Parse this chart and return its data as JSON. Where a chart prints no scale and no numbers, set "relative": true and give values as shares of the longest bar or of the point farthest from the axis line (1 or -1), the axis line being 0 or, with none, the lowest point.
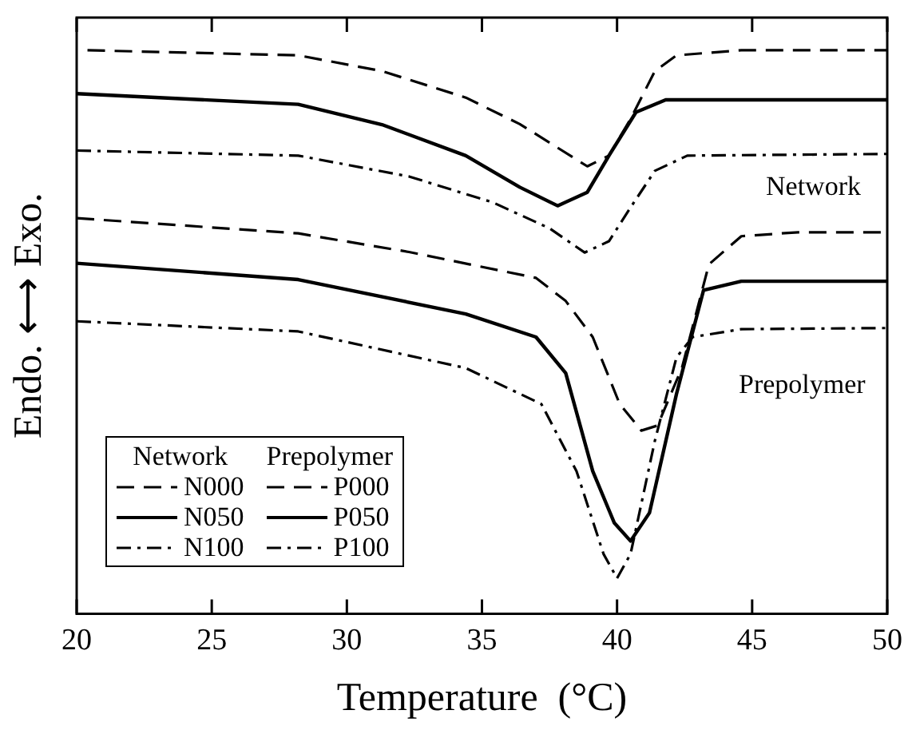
{
  "chart_data": {
    "type": "line",
    "relative": true,
    "xlabel": "Temperature  (°C)",
    "ylabel": "Endo. ⟷ Exo.",
    "xlim": [
      20,
      50
    ],
    "xticks": [
      20,
      25,
      30,
      35,
      40,
      45,
      50
    ],
    "legend": "bottom left",
    "marker": "none",
    "grid": false,
    "annotations": [
      "Network",
      "Prepolymer",
      "Network",
      "Prepolymer"
    ],
    "series": [
      {
        "name": "N000",
        "color": "#000000",
        "line_style": "dashed",
        "x": [
          20.4,
          28.2,
          31.3,
          34.4,
          36.4,
          38.9,
          39.7,
          40.5,
          41.4,
          42.2,
          44.6,
          50
        ],
        "values": [
          1.0,
          0.991,
          0.963,
          0.916,
          0.869,
          0.794,
          0.813,
          0.878,
          0.963,
          0.991,
          1.0,
          1.0
        ]
      },
      {
        "name": "N050",
        "color": "#000000",
        "line_style": "solid",
        "x": [
          20,
          28.2,
          31.3,
          34.4,
          36.4,
          37.8,
          38.9,
          39.7,
          40.7,
          41.8,
          50
        ],
        "values": [
          0.923,
          0.904,
          0.868,
          0.813,
          0.757,
          0.724,
          0.748,
          0.813,
          0.89,
          0.912,
          0.912
        ]
      },
      {
        "name": "N100",
        "color": "#000000",
        "line_style": "dashdot",
        "x": [
          20,
          28.2,
          32.3,
          35.4,
          37.5,
          38.8,
          39.7,
          40.5,
          41.4,
          42.6,
          50
        ],
        "values": [
          0.822,
          0.813,
          0.776,
          0.73,
          0.684,
          0.641,
          0.661,
          0.721,
          0.786,
          0.813,
          0.816
        ]
      },
      {
        "name": "P000",
        "color": "#000000",
        "line_style": "dashed",
        "x": [
          20,
          28.2,
          32.3,
          37.0,
          38.1,
          39.1,
          40.1,
          40.9,
          41.5,
          42.4,
          43.4,
          44.6,
          46.7,
          50
        ],
        "values": [
          0.702,
          0.675,
          0.642,
          0.596,
          0.555,
          0.491,
          0.372,
          0.325,
          0.334,
          0.436,
          0.62,
          0.67,
          0.677,
          0.677
        ]
      },
      {
        "name": "P050",
        "color": "#000000",
        "line_style": "solid",
        "x": [
          20,
          28.2,
          34.4,
          37.0,
          38.1,
          39.1,
          39.9,
          40.5,
          41.2,
          42.2,
          43.2,
          44.6,
          50
        ],
        "values": [
          0.622,
          0.593,
          0.532,
          0.491,
          0.427,
          0.253,
          0.161,
          0.129,
          0.179,
          0.39,
          0.574,
          0.59,
          0.59
        ]
      },
      {
        "name": "P100",
        "color": "#000000",
        "line_style": "dashdot",
        "x": [
          20,
          28.2,
          34.4,
          37.2,
          38.5,
          39.5,
          40.0,
          40.5,
          41.4,
          42.2,
          42.8,
          44.6,
          50
        ],
        "values": [
          0.519,
          0.501,
          0.436,
          0.372,
          0.253,
          0.106,
          0.063,
          0.106,
          0.307,
          0.455,
          0.491,
          0.505,
          0.507
        ]
      }
    ]
  }
}
